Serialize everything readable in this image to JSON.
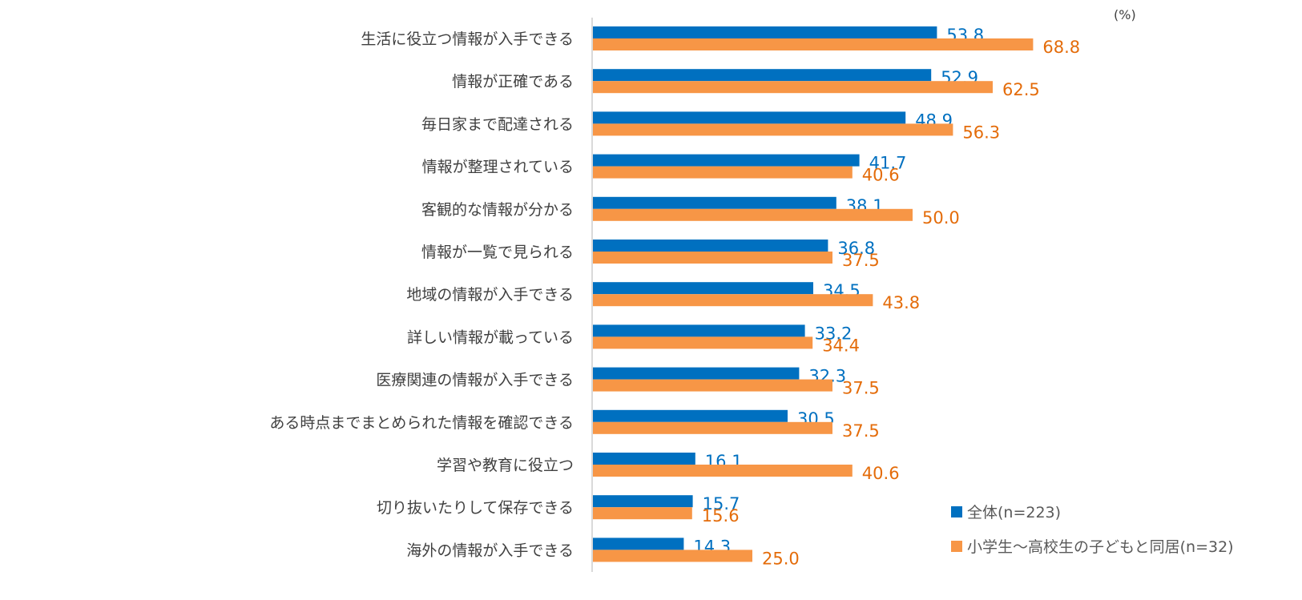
{
  "chart_data": {
    "type": "bar",
    "orientation": "horizontal",
    "unit_label": "(%)",
    "categories": [
      "生活に役立つ情報が入手できる",
      "情報が正確である",
      "毎日家まで配達される",
      "情報が整理されている",
      "客観的な情報が分かる",
      "情報が一覧で見られる",
      "地域の情報が入手できる",
      "詳しい情報が載っている",
      "医療関連の情報が入手できる",
      "ある時点までまとめられた情報を確認できる",
      "学習や教育に役立つ",
      "切り抜いたりして保存できる",
      "海外の情報が入手できる"
    ],
    "series": [
      {
        "name": "全体(n=223)",
        "color": "#0070C0",
        "label_color": "#0070C0",
        "values": [
          53.8,
          52.9,
          48.9,
          41.7,
          38.1,
          36.8,
          34.5,
          33.2,
          32.3,
          30.5,
          16.1,
          15.7,
          14.3
        ]
      },
      {
        "name": "小学生～高校生の子どもと同居(n=32)",
        "color": "#F79646",
        "label_color": "#E46C0A",
        "values": [
          68.8,
          62.5,
          56.3,
          40.6,
          50.0,
          37.5,
          43.8,
          34.4,
          37.5,
          37.5,
          40.6,
          15.6,
          25.0
        ]
      }
    ],
    "xlim": [
      0,
      100
    ],
    "grid": false,
    "legend_position": "bottom-right",
    "axis_color": "#D9D9D9"
  }
}
